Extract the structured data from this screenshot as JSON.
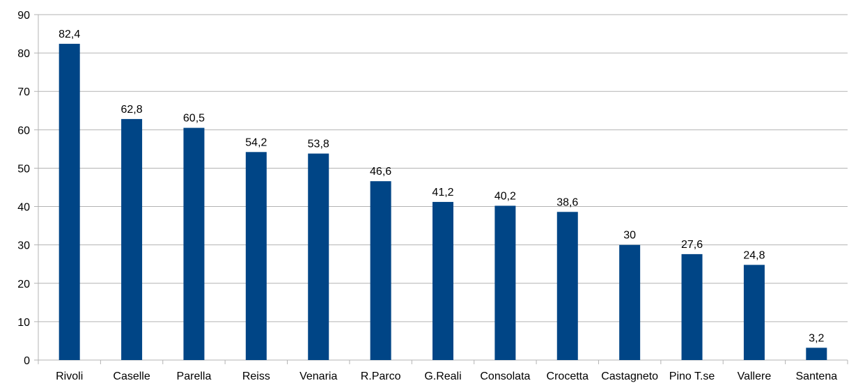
{
  "chart_data": {
    "type": "bar",
    "categories": [
      "Rivoli",
      "Caselle",
      "Parella",
      "Reiss",
      "Venaria",
      "R.Parco",
      "G.Reali",
      "Consolata",
      "Crocetta",
      "Castagneto",
      "Pino T.se",
      "Vallere",
      "Santena"
    ],
    "values": [
      82.4,
      62.8,
      60.5,
      54.2,
      53.8,
      46.6,
      41.2,
      40.2,
      38.6,
      30,
      27.6,
      24.8,
      3.2
    ],
    "data_labels": [
      "82,4",
      "62,8",
      "60,5",
      "54,2",
      "53,8",
      "46,6",
      "41,2",
      "40,2",
      "38,6",
      "30",
      "27,6",
      "24,8",
      "3,2"
    ],
    "ylim": [
      0,
      90
    ],
    "y_ticks": [
      "0",
      "10",
      "20",
      "30",
      "40",
      "50",
      "60",
      "70",
      "80",
      "90"
    ],
    "grid": true,
    "legend": "none",
    "colors": {
      "bar": "#004586",
      "grid": "#b3b3b3",
      "axis": "#b3b3b3"
    }
  }
}
